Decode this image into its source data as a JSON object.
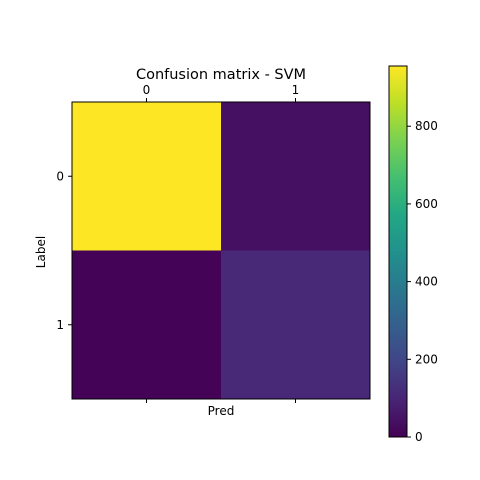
{
  "chart_data": {
    "type": "heatmap",
    "title": "Confusion matrix - SVM",
    "xlabel": "Pred",
    "ylabel": "Label",
    "x_categories": [
      "0",
      "1"
    ],
    "y_categories": [
      "0",
      "1"
    ],
    "values": [
      [
        955,
        40
      ],
      [
        5,
        110
      ]
    ],
    "colorbar": {
      "ticks": [
        0,
        200,
        400,
        600,
        800
      ],
      "min": 0,
      "max": 955,
      "colormap": "viridis"
    },
    "grid": false,
    "x_tick_position": "top"
  }
}
